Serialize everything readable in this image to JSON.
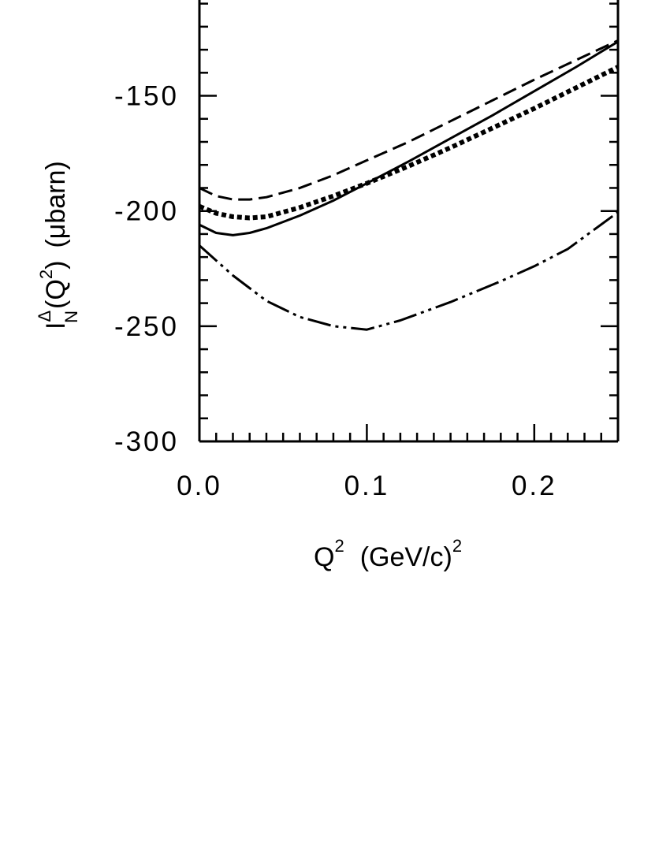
{
  "chart_data": {
    "type": "line",
    "xlabel": {
      "base": "Q",
      "sup": "2",
      "unit_open": "(GeV/c)",
      "unit_sup": "2"
    },
    "ylabel": {
      "base": "I",
      "sup": "Δ",
      "sub": "N",
      "arg_open": "(Q",
      "arg_sup": "2",
      "arg_close": ")",
      "unit": "(μbarn)"
    },
    "xlim": [
      0.0,
      0.25
    ],
    "ylim": [
      -300,
      -105
    ],
    "x_ticks": [
      {
        "value": 0.0,
        "label": "0.0"
      },
      {
        "value": 0.1,
        "label": "0.1"
      },
      {
        "value": 0.2,
        "label": "0.2"
      }
    ],
    "y_ticks": [
      {
        "value": -150,
        "label": "-150"
      },
      {
        "value": -200,
        "label": "-200"
      },
      {
        "value": -250,
        "label": "-250"
      },
      {
        "value": -300,
        "label": "-300"
      }
    ],
    "x_minor_step": 0.01,
    "y_minor_step": 10,
    "grid": false,
    "series": [
      {
        "style": "solid",
        "x": [
          0.0,
          0.01,
          0.02,
          0.03,
          0.04,
          0.06,
          0.08,
          0.1,
          0.125,
          0.15,
          0.175,
          0.2,
          0.225,
          0.25
        ],
        "y": [
          -206,
          -209.5,
          -210.5,
          -209.5,
          -207.5,
          -202,
          -195.5,
          -188,
          -178.5,
          -168.5,
          -158.5,
          -148,
          -137.5,
          -126.5
        ]
      },
      {
        "style": "dashed",
        "x": [
          0.0,
          0.01,
          0.02,
          0.03,
          0.04,
          0.06,
          0.08,
          0.1,
          0.125,
          0.15,
          0.175,
          0.2,
          0.225,
          0.25
        ],
        "y": [
          -190,
          -193.5,
          -195,
          -195,
          -194,
          -190,
          -184.5,
          -178,
          -170,
          -161,
          -152,
          -143,
          -134.5,
          -126
        ]
      },
      {
        "style": "dotted",
        "x": [
          0.0,
          0.01,
          0.02,
          0.03,
          0.04,
          0.06,
          0.08,
          0.1,
          0.125,
          0.15,
          0.175,
          0.2,
          0.225,
          0.25
        ],
        "y": [
          -198,
          -201,
          -202.5,
          -203,
          -202.5,
          -198.5,
          -193.5,
          -188,
          -180.5,
          -172.5,
          -164,
          -155.5,
          -146.5,
          -137.5
        ]
      },
      {
        "style": "dash-dot-dot",
        "x": [
          0.0,
          0.02,
          0.04,
          0.06,
          0.08,
          0.1,
          0.12,
          0.15,
          0.18,
          0.2,
          0.22,
          0.25
        ],
        "y": [
          -215,
          -228,
          -239,
          -246,
          -250,
          -251.5,
          -247.5,
          -239.5,
          -230.5,
          -224,
          -216.5,
          -200.5
        ]
      }
    ]
  }
}
